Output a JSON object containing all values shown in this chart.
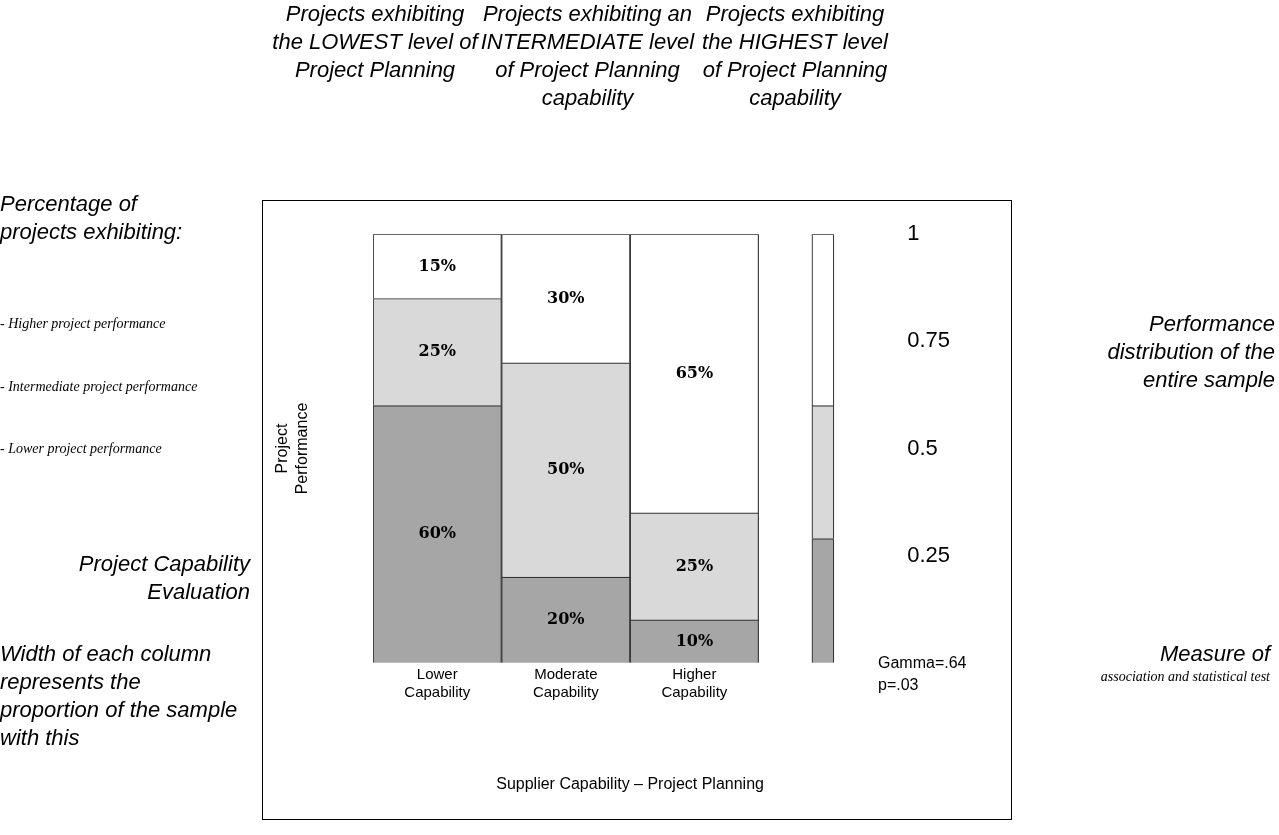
{
  "chart_data": {
    "type": "bar",
    "stacked": true,
    "xlabel": "Supplier Capability – Project Planning",
    "ylabel": "Project Performance",
    "categories": [
      "Lower Capability",
      "Moderate Capability",
      "Higher Capability",
      null
    ],
    "series": [
      {
        "color": "#a6a6a6",
        "values": [
          0.6,
          0.2,
          0.1,
          0.29
        ],
        "value_labels": [
          "60%",
          "20%",
          "10%",
          null
        ]
      },
      {
        "color": "#d9d9d9",
        "values": [
          0.25,
          0.5,
          0.25,
          0.31
        ],
        "value_labels": [
          "25%",
          "50%",
          "25%",
          null
        ]
      },
      {
        "color": "#ffffff",
        "values": [
          0.15,
          0.3,
          0.65,
          0.4
        ],
        "value_labels": [
          "15%",
          "30%",
          "65%",
          null
        ]
      }
    ],
    "ylim": [
      0,
      1
    ],
    "yticks": [
      0.25,
      0.5,
      0.75,
      1
    ],
    "grid": false,
    "legend": false,
    "annotations": [
      "Projects exhibiting the LOWEST level of Project Planning",
      "Projects exhibiting an INTERMEDIATE level of Project Planning capability",
      "Projects exhibiting the HIGHEST level of Project Planning capability",
      "Percentage of projects exhibiting:",
      "- Higher project performance",
      "- Intermediate project performance",
      "- Lower project performance",
      "Performance distribution of the entire sample",
      "Project Capability Evaluation",
      "Width of each column represents the proportion of the sample with this",
      "Measure of",
      "association and statistical test",
      "Gamma=.64 p=.03"
    ]
  }
}
